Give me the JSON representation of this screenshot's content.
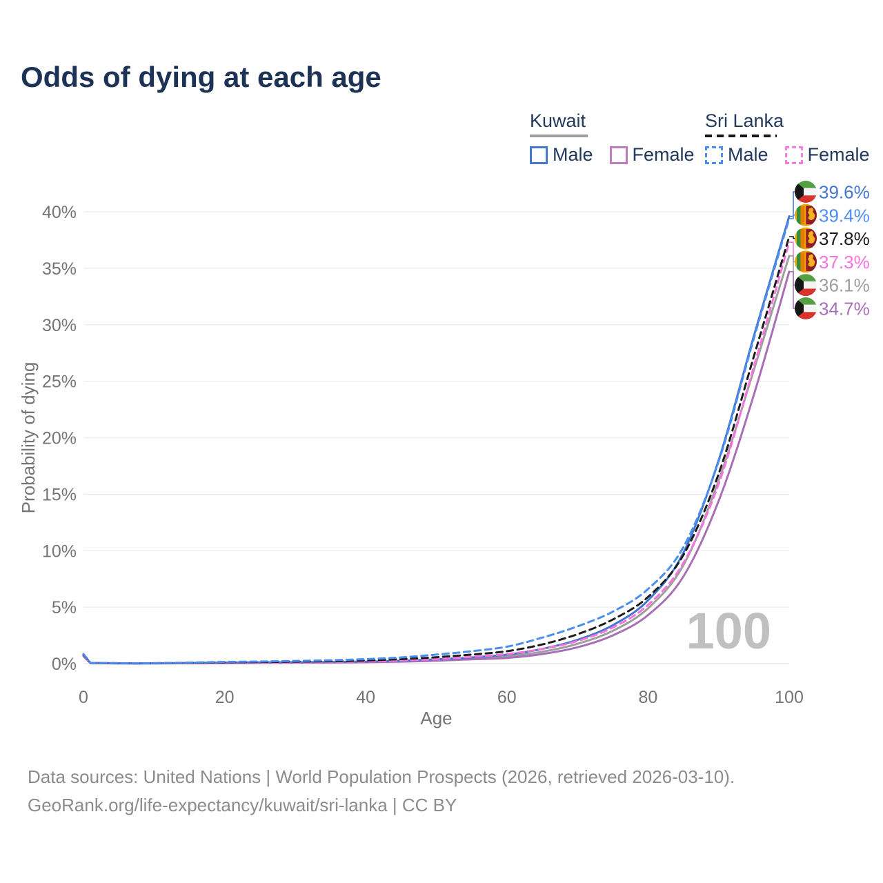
{
  "title": "Odds of dying at each age",
  "legend": {
    "kuwait": {
      "name": "Kuwait",
      "male_label": "Male",
      "female_label": "Female",
      "line_style": "solid"
    },
    "sri_lanka": {
      "name": "Sri Lanka",
      "male_label": "Male",
      "female_label": "Female",
      "line_style": "dashed"
    }
  },
  "watermark_age": "100",
  "footer": {
    "line1": "Data sources: United Nations | World Population Prospects (2026, retrieved 2026-03-10).",
    "line2": "GeoRank.org/life-expectancy/kuwait/sri-lanka | CC BY"
  },
  "colors": {
    "kuwait_male": "#4577cd",
    "kuwait_female": "#a76fb5",
    "kuwait_both": "#9e9e9e",
    "sri_lanka_male": "#4b8ef0",
    "sri_lanka_female": "#f973df",
    "sri_lanka_both": "#1c1c1c",
    "title_text": "#1c3356",
    "legend_text": "#223a5e",
    "axis_text": "#757575",
    "grid": "#ececec",
    "watermark": "#c0c0c0",
    "footer_text": "#8c8c8c"
  },
  "chart_data": {
    "type": "line",
    "title": "Odds of dying at each age",
    "xlabel": "Age",
    "ylabel": "Probability of dying",
    "xlim": [
      0,
      100
    ],
    "ylim_percent": [
      0,
      40
    ],
    "x_ticks": [
      0,
      20,
      40,
      60,
      80,
      100
    ],
    "y_ticks_percent": [
      0,
      5,
      10,
      15,
      20,
      25,
      30,
      35,
      40
    ],
    "grid": true,
    "legend_position": "top-right",
    "ages": [
      0,
      1,
      5,
      10,
      15,
      20,
      25,
      30,
      35,
      40,
      45,
      50,
      55,
      60,
      65,
      70,
      75,
      80,
      85,
      90,
      95,
      100
    ],
    "series": [
      {
        "name": "Kuwait Male",
        "country": "Kuwait",
        "sex": "male",
        "flag": "kuwait",
        "line_style": "solid",
        "color": "#4577cd",
        "end_label": "39.6%",
        "end_value_percent": 39.6,
        "values_percent": [
          0.75,
          0.06,
          0.03,
          0.03,
          0.06,
          0.09,
          0.11,
          0.12,
          0.14,
          0.18,
          0.25,
          0.38,
          0.55,
          0.8,
          1.3,
          2.1,
          3.4,
          5.6,
          9.8,
          18.0,
          29.0,
          39.6
        ]
      },
      {
        "name": "Sri Lanka Male",
        "country": "Sri Lanka",
        "sex": "male",
        "flag": "sri-lanka",
        "line_style": "dashed",
        "color": "#4b8ef0",
        "end_label": "39.4%",
        "end_value_percent": 39.4,
        "values_percent": [
          0.85,
          0.07,
          0.04,
          0.04,
          0.09,
          0.15,
          0.19,
          0.24,
          0.3,
          0.4,
          0.55,
          0.8,
          1.1,
          1.5,
          2.3,
          3.3,
          4.6,
          6.6,
          10.3,
          17.9,
          28.8,
          39.4
        ]
      },
      {
        "name": "Sri Lanka Both sexes",
        "country": "Sri Lanka",
        "sex": "both",
        "flag": "sri-lanka",
        "line_style": "dashed",
        "color": "#1c1c1c",
        "end_label": "37.8%",
        "end_value_percent": 37.8,
        "values_percent": [
          0.8,
          0.06,
          0.03,
          0.03,
          0.07,
          0.11,
          0.14,
          0.17,
          0.21,
          0.28,
          0.4,
          0.57,
          0.8,
          1.1,
          1.7,
          2.6,
          3.9,
          5.9,
          9.6,
          16.8,
          27.2,
          37.8
        ]
      },
      {
        "name": "Sri Lanka Female",
        "country": "Sri Lanka",
        "sex": "female",
        "flag": "sri-lanka",
        "line_style": "dashed",
        "color": "#f973df",
        "end_label": "37.3%",
        "end_value_percent": 37.3,
        "values_percent": [
          0.75,
          0.05,
          0.03,
          0.03,
          0.05,
          0.07,
          0.09,
          0.11,
          0.14,
          0.19,
          0.28,
          0.4,
          0.6,
          0.85,
          1.3,
          2.0,
          3.2,
          5.2,
          8.9,
          15.9,
          26.3,
          37.3
        ]
      },
      {
        "name": "Kuwait Both sexes",
        "country": "Kuwait",
        "sex": "both",
        "flag": "kuwait",
        "line_style": "solid",
        "color": "#9e9e9e",
        "end_label": "36.1%",
        "end_value_percent": 36.1,
        "values_percent": [
          0.7,
          0.05,
          0.03,
          0.03,
          0.05,
          0.07,
          0.09,
          0.1,
          0.12,
          0.15,
          0.21,
          0.31,
          0.46,
          0.65,
          1.05,
          1.75,
          2.9,
          4.9,
          8.7,
          16.2,
          26.0,
          36.1
        ]
      },
      {
        "name": "Kuwait Female",
        "country": "Kuwait",
        "sex": "female",
        "flag": "kuwait",
        "line_style": "solid",
        "color": "#a76fb5",
        "end_label": "34.7%",
        "end_value_percent": 34.7,
        "values_percent": [
          0.65,
          0.05,
          0.02,
          0.02,
          0.04,
          0.05,
          0.06,
          0.08,
          0.1,
          0.13,
          0.18,
          0.26,
          0.38,
          0.5,
          0.85,
          1.45,
          2.5,
          4.3,
          7.7,
          14.4,
          23.8,
          34.7
        ]
      }
    ]
  }
}
